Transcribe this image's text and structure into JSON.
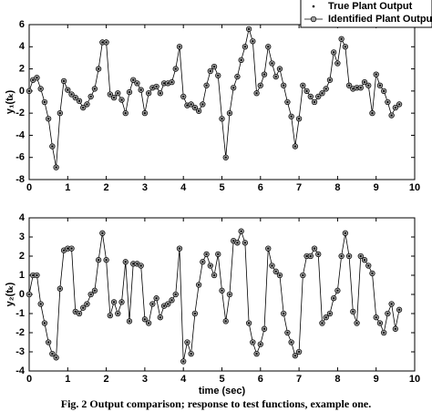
{
  "legend": {
    "position": "upper right"
  },
  "caption": "Fig. 2    Output comparison; response to test functions, example one.",
  "chart_data": [
    {
      "type": "line",
      "ylabel": "y₁(tₖ)",
      "x": [
        0,
        0.1,
        0.2,
        0.3,
        0.4,
        0.5,
        0.6,
        0.7,
        0.8,
        0.9,
        1,
        1.1,
        1.2,
        1.3,
        1.4,
        1.5,
        1.6,
        1.7,
        1.8,
        1.9,
        2,
        2.1,
        2.2,
        2.3,
        2.4,
        2.5,
        2.6,
        2.7,
        2.8,
        2.9,
        3,
        3.1,
        3.2,
        3.3,
        3.4,
        3.5,
        3.6,
        3.7,
        3.8,
        3.9,
        4,
        4.1,
        4.2,
        4.3,
        4.4,
        4.5,
        4.6,
        4.7,
        4.8,
        4.9,
        5,
        5.1,
        5.2,
        5.3,
        5.4,
        5.5,
        5.6,
        5.7,
        5.8,
        5.9,
        6,
        6.1,
        6.2,
        6.3,
        6.4,
        6.5,
        6.6,
        6.7,
        6.8,
        6.9,
        7,
        7.1,
        7.2,
        7.3,
        7.4,
        7.5,
        7.6,
        7.7,
        7.8,
        7.9,
        8,
        8.1,
        8.2,
        8.3,
        8.4,
        8.5,
        8.6,
        8.7,
        8.8,
        8.9,
        9,
        9.1,
        9.2,
        9.3,
        9.4,
        9.5,
        9.6
      ],
      "series": [
        {
          "name": "True Plant Output",
          "color": "#000000",
          "marker": "dot",
          "values": [
            0,
            1,
            1.2,
            0.2,
            -1,
            -2.5,
            -5,
            -6.9,
            -2,
            0.9,
            0.1,
            -0.3,
            -0.6,
            -0.9,
            -1.5,
            -1.2,
            -0.5,
            0.2,
            2,
            4.4,
            4.4,
            -0.3,
            -0.6,
            -0.2,
            -0.8,
            -2,
            -0.1,
            1,
            0.7,
            0.1,
            -2,
            -0.2,
            0.3,
            0.4,
            -0.2,
            0.7,
            0.7,
            0.8,
            2,
            4,
            -0.5,
            -1.3,
            -1.2,
            -1.5,
            -1.8,
            -1.2,
            0.5,
            1.8,
            2.2,
            1.4,
            -2.5,
            -6,
            -2,
            0.3,
            1.3,
            2.8,
            4,
            5.6,
            4.5,
            -0.2,
            0.5,
            1.5,
            4,
            2.5,
            1.3,
            2,
            0.5,
            -1,
            -2.3,
            -5,
            -2.5,
            0.5,
            0,
            -0.5,
            -1,
            -0.5,
            -0.2,
            0.2,
            1,
            3.5,
            2.5,
            4.7,
            4,
            0.5,
            0.2,
            0.3,
            0.3,
            0.8,
            0.5,
            -2,
            1.5,
            0.5,
            0,
            -1,
            -2.2,
            -1.5,
            -1.2
          ]
        },
        {
          "name": "Identified Plant Output",
          "color": "#000000",
          "marker": "circle",
          "fill": "#a0a0a0",
          "values": [
            0,
            1,
            1.2,
            0.2,
            -1,
            -2.5,
            -5,
            -6.9,
            -2,
            0.9,
            0.1,
            -0.3,
            -0.6,
            -0.9,
            -1.5,
            -1.2,
            -0.5,
            0.2,
            2,
            4.4,
            4.4,
            -0.3,
            -0.6,
            -0.2,
            -0.8,
            -2,
            -0.1,
            1,
            0.7,
            0.1,
            -2,
            -0.2,
            0.3,
            0.4,
            -0.2,
            0.7,
            0.7,
            0.8,
            2,
            4,
            -0.5,
            -1.3,
            -1.2,
            -1.5,
            -1.8,
            -1.2,
            0.5,
            1.8,
            2.2,
            1.4,
            -2.5,
            -6,
            -2,
            0.3,
            1.3,
            2.8,
            4,
            5.6,
            4.5,
            -0.2,
            0.5,
            1.5,
            4,
            2.5,
            1.3,
            2,
            0.5,
            -1,
            -2.3,
            -5,
            -2.5,
            0.5,
            0,
            -0.5,
            -1,
            -0.5,
            -0.2,
            0.2,
            1,
            3.5,
            2.5,
            4.7,
            4,
            0.5,
            0.2,
            0.3,
            0.3,
            0.8,
            0.5,
            -2,
            1.5,
            0.5,
            0,
            -1,
            -2.2,
            -1.5,
            -1.2
          ]
        }
      ],
      "xlim": [
        0,
        10
      ],
      "xticks": [
        0,
        1,
        2,
        3,
        4,
        5,
        6,
        7,
        8,
        9,
        10
      ],
      "ylim": [
        -8,
        6
      ],
      "yticks": [
        -8,
        -6,
        -4,
        -2,
        0,
        2,
        4,
        6
      ]
    },
    {
      "type": "line",
      "ylabel": "y₂(tₖ)",
      "xlabel": "time (sec)",
      "x": [
        0,
        0.1,
        0.2,
        0.3,
        0.4,
        0.5,
        0.6,
        0.7,
        0.8,
        0.9,
        1,
        1.1,
        1.2,
        1.3,
        1.4,
        1.5,
        1.6,
        1.7,
        1.8,
        1.9,
        2,
        2.1,
        2.2,
        2.3,
        2.4,
        2.5,
        2.6,
        2.7,
        2.8,
        2.9,
        3,
        3.1,
        3.2,
        3.3,
        3.4,
        3.5,
        3.6,
        3.7,
        3.8,
        3.9,
        4,
        4.1,
        4.2,
        4.3,
        4.4,
        4.5,
        4.6,
        4.7,
        4.8,
        4.9,
        5,
        5.1,
        5.2,
        5.3,
        5.4,
        5.5,
        5.6,
        5.7,
        5.8,
        5.9,
        6,
        6.1,
        6.2,
        6.3,
        6.4,
        6.5,
        6.6,
        6.7,
        6.8,
        6.9,
        7,
        7.1,
        7.2,
        7.3,
        7.4,
        7.5,
        7.6,
        7.7,
        7.8,
        7.9,
        8,
        8.1,
        8.2,
        8.3,
        8.4,
        8.5,
        8.6,
        8.7,
        8.8,
        8.9,
        9,
        9.1,
        9.2,
        9.3,
        9.4,
        9.5,
        9.6
      ],
      "series": [
        {
          "color": "#000000",
          "marker": "dot",
          "values": [
            0,
            1,
            1,
            -0.5,
            -1.5,
            -2.5,
            -3.1,
            -3.3,
            0.3,
            2.3,
            2.4,
            2.4,
            -0.9,
            -1,
            -0.7,
            -0.5,
            0,
            0.2,
            1.8,
            3.2,
            1.8,
            -1.1,
            -0.4,
            -1,
            -0.4,
            1.7,
            -1.4,
            1.6,
            1.6,
            1.5,
            -1.3,
            -1.5,
            -0.5,
            -0.2,
            -1.2,
            -0.6,
            -0.5,
            -0.3,
            0,
            2.4,
            -3.5,
            -2.5,
            -3.1,
            -1,
            0.5,
            1.7,
            2.1,
            1.5,
            1,
            2.1,
            0.2,
            -1.4,
            0,
            2.8,
            2.7,
            3.3,
            2.7,
            -1.5,
            -2.5,
            -3.1,
            -2.6,
            -1.8,
            2.4,
            1.5,
            1.2,
            1,
            -1,
            -2,
            -2.5,
            -3.2,
            -3,
            1,
            2,
            2,
            2.4,
            2.1,
            -1.5,
            -1.2,
            -1,
            -0.2,
            0.2,
            2,
            3.2,
            2,
            -0.9,
            -1.5,
            2,
            1.8,
            1.5,
            1.1,
            -1.2,
            -1.5,
            -2,
            -1,
            -0.5,
            -1.8,
            -0.8
          ]
        },
        {
          "color": "#000000",
          "marker": "circle",
          "fill": "#a0a0a0",
          "values": [
            0,
            1,
            1,
            -0.5,
            -1.5,
            -2.5,
            -3.1,
            -3.3,
            0.3,
            2.3,
            2.4,
            2.4,
            -0.9,
            -1,
            -0.7,
            -0.5,
            0,
            0.2,
            1.8,
            3.2,
            1.8,
            -1.1,
            -0.4,
            -1,
            -0.4,
            1.7,
            -1.4,
            1.6,
            1.6,
            1.5,
            -1.3,
            -1.5,
            -0.5,
            -0.2,
            -1.2,
            -0.6,
            -0.5,
            -0.3,
            0,
            2.4,
            -3.5,
            -2.5,
            -3.1,
            -1,
            0.5,
            1.7,
            2.1,
            1.5,
            1,
            2.1,
            0.2,
            -1.4,
            0,
            2.8,
            2.7,
            3.3,
            2.7,
            -1.5,
            -2.5,
            -3.1,
            -2.6,
            -1.8,
            2.4,
            1.5,
            1.2,
            1,
            -1,
            -2,
            -2.5,
            -3.2,
            -3,
            1,
            2,
            2,
            2.4,
            2.1,
            -1.5,
            -1.2,
            -1,
            -0.2,
            0.2,
            2,
            3.2,
            2,
            -0.9,
            -1.5,
            2,
            1.8,
            1.5,
            1.1,
            -1.2,
            -1.5,
            -2,
            -1,
            -0.5,
            -1.8,
            -0.8
          ]
        }
      ],
      "xlim": [
        0,
        10
      ],
      "xticks": [
        0,
        1,
        2,
        3,
        4,
        5,
        6,
        7,
        8,
        9,
        10
      ],
      "ylim": [
        -4,
        4
      ],
      "yticks": [
        -4,
        -3,
        -2,
        -1,
        0,
        1,
        2,
        3,
        4
      ]
    }
  ]
}
